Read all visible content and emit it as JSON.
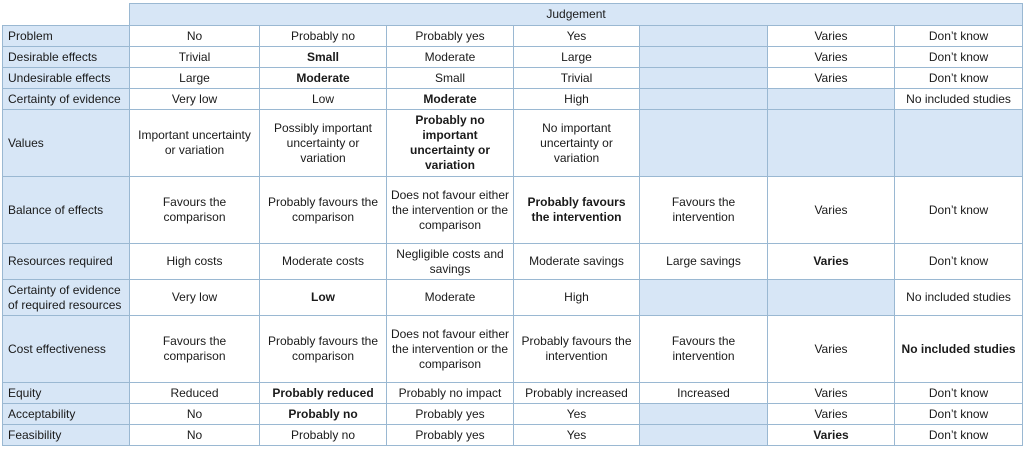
{
  "header": {
    "judgement": "Judgement"
  },
  "rows": [
    {
      "criterion": "Problem",
      "cells": [
        {
          "text": "No"
        },
        {
          "text": "Probably no"
        },
        {
          "text": "Probably yes"
        },
        {
          "text": "Yes"
        },
        {
          "text": "",
          "blank": true
        },
        {
          "text": "Varies"
        },
        {
          "text": "Don’t know"
        }
      ]
    },
    {
      "criterion": "Desirable effects",
      "cells": [
        {
          "text": "Trivial"
        },
        {
          "text": "Small",
          "bold": true
        },
        {
          "text": "Moderate"
        },
        {
          "text": "Large"
        },
        {
          "text": "",
          "blank": true
        },
        {
          "text": "Varies"
        },
        {
          "text": "Don’t know"
        }
      ]
    },
    {
      "criterion": "Undesirable effects",
      "cells": [
        {
          "text": "Large"
        },
        {
          "text": "Moderate",
          "bold": true
        },
        {
          "text": "Small"
        },
        {
          "text": "Trivial"
        },
        {
          "text": "",
          "blank": true
        },
        {
          "text": "Varies"
        },
        {
          "text": "Don’t know"
        }
      ]
    },
    {
      "criterion": "Certainty of evidence",
      "cells": [
        {
          "text": "Very low"
        },
        {
          "text": "Low"
        },
        {
          "text": "Moderate",
          "bold": true
        },
        {
          "text": "High"
        },
        {
          "text": "",
          "blank": true
        },
        {
          "text": "",
          "blank": true
        },
        {
          "text": "No included studies"
        }
      ]
    },
    {
      "criterion": "Values",
      "cells": [
        {
          "text": "Important uncertainty or variation"
        },
        {
          "text": "Possibly important uncertainty or variation"
        },
        {
          "text": "Probably no important uncertainty or variation",
          "bold": true
        },
        {
          "text": "No important uncertainty or variation"
        },
        {
          "text": "",
          "blank": true
        },
        {
          "text": "",
          "blank": true
        },
        {
          "text": "",
          "blank": true
        }
      ]
    },
    {
      "criterion": "Balance of effects",
      "cells": [
        {
          "text": "Favours the comparison"
        },
        {
          "text": "Probably favours the comparison"
        },
        {
          "text": "Does not favour either the intervention or the comparison"
        },
        {
          "text": "Probably favours the intervention",
          "bold": true
        },
        {
          "text": "Favours the intervention"
        },
        {
          "text": "Varies"
        },
        {
          "text": "Don’t know"
        }
      ]
    },
    {
      "criterion": "Resources required",
      "cells": [
        {
          "text": "High costs"
        },
        {
          "text": "Moderate costs"
        },
        {
          "text": "Negligible costs and savings"
        },
        {
          "text": "Moderate savings"
        },
        {
          "text": "Large savings"
        },
        {
          "text": "Varies",
          "bold": true
        },
        {
          "text": "Don’t know"
        }
      ]
    },
    {
      "criterion": "Certainty of evidence of required resources",
      "cells": [
        {
          "text": "Very low"
        },
        {
          "text": "Low",
          "bold": true
        },
        {
          "text": "Moderate"
        },
        {
          "text": "High"
        },
        {
          "text": "",
          "blank": true
        },
        {
          "text": "",
          "blank": true
        },
        {
          "text": "No included studies"
        }
      ]
    },
    {
      "criterion": "Cost effectiveness",
      "cells": [
        {
          "text": "Favours the comparison"
        },
        {
          "text": "Probably favours the comparison"
        },
        {
          "text": "Does not favour either the intervention or the comparison"
        },
        {
          "text": "Probably favours the intervention"
        },
        {
          "text": "Favours the intervention"
        },
        {
          "text": "Varies"
        },
        {
          "text": "No included studies",
          "bold": true
        }
      ]
    },
    {
      "criterion": "Equity",
      "cells": [
        {
          "text": "Reduced"
        },
        {
          "text": "Probably reduced",
          "bold": true
        },
        {
          "text": "Probably no impact"
        },
        {
          "text": "Probably increased"
        },
        {
          "text": "Increased"
        },
        {
          "text": "Varies"
        },
        {
          "text": "Don’t know"
        }
      ]
    },
    {
      "criterion": "Acceptability",
      "cells": [
        {
          "text": "No"
        },
        {
          "text": "Probably no",
          "bold": true
        },
        {
          "text": "Probably yes"
        },
        {
          "text": "Yes"
        },
        {
          "text": "",
          "blank": true
        },
        {
          "text": "Varies"
        },
        {
          "text": "Don’t know"
        }
      ]
    },
    {
      "criterion": "Feasibility",
      "cells": [
        {
          "text": "No"
        },
        {
          "text": "Probably no"
        },
        {
          "text": "Probably yes"
        },
        {
          "text": "Yes"
        },
        {
          "text": "",
          "blank": true
        },
        {
          "text": "Varies",
          "bold": true
        },
        {
          "text": "Don’t know"
        }
      ]
    }
  ]
}
